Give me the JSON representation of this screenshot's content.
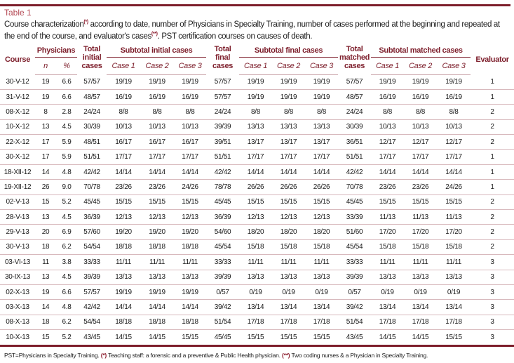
{
  "title": "Table 1",
  "caption": {
    "p1": "Course characterization",
    "s1": "(*)",
    "p2": " according to date, number of Physicians in Specialty Training, number of cases performed at the beginning and repeated at the end of the course, and evaluator's cases",
    "s2": "(**)",
    "p3": ". PST certification courses on causes of death."
  },
  "accent_color": "#7d1e2b",
  "headers": {
    "course": "Course",
    "physicians": "Physicians",
    "n": "n",
    "pct": "%",
    "total_initial": "Total initial cases",
    "subtotal_initial": "Subtotal initial cases",
    "total_final": "Total final cases",
    "subtotal_final": "Subtotal final cases",
    "total_matched": "Total matched cases",
    "subtotal_matched": "Subtotal matched cases",
    "evaluator": "Evaluator",
    "case1": "Case 1",
    "case2": "Case 2",
    "case3": "Case 3"
  },
  "rows": [
    [
      "30-V-12",
      "19",
      "6.6",
      "57/57",
      "19/19",
      "19/19",
      "19/19",
      "57/57",
      "19/19",
      "19/19",
      "19/19",
      "57/57",
      "19/19",
      "19/19",
      "19/19",
      "1"
    ],
    [
      "31-V-12",
      "19",
      "6.6",
      "48/57",
      "16/19",
      "16/19",
      "16/19",
      "57/57",
      "19/19",
      "19/19",
      "19/19",
      "48/57",
      "16/19",
      "16/19",
      "16/19",
      "1"
    ],
    [
      "08-X-12",
      "8",
      "2.8",
      "24/24",
      "8/8",
      "8/8",
      "8/8",
      "24/24",
      "8/8",
      "8/8",
      "8/8",
      "24/24",
      "8/8",
      "8/8",
      "8/8",
      "2"
    ],
    [
      "10-X-12",
      "13",
      "4.5",
      "30/39",
      "10/13",
      "10/13",
      "10/13",
      "39/39",
      "13/13",
      "13/13",
      "13/13",
      "30/39",
      "10/13",
      "10/13",
      "10/13",
      "2"
    ],
    [
      "22-X-12",
      "17",
      "5.9",
      "48/51",
      "16/17",
      "16/17",
      "16/17",
      "39/51",
      "13/17",
      "13/17",
      "13/17",
      "36/51",
      "12/17",
      "12/17",
      "12/17",
      "2"
    ],
    [
      "30-X-12",
      "17",
      "5.9",
      "51/51",
      "17/17",
      "17/17",
      "17/17",
      "51/51",
      "17/17",
      "17/17",
      "17/17",
      "51/51",
      "17/17",
      "17/17",
      "17/17",
      "1"
    ],
    [
      "18-XII-12",
      "14",
      "4.8",
      "42/42",
      "14/14",
      "14/14",
      "14/14",
      "42/42",
      "14/14",
      "14/14",
      "14/14",
      "42/42",
      "14/14",
      "14/14",
      "14/14",
      "1"
    ],
    [
      "19-XII-12",
      "26",
      "9.0",
      "70/78",
      "23/26",
      "23/26",
      "24/26",
      "78/78",
      "26/26",
      "26/26",
      "26/26",
      "70/78",
      "23/26",
      "23/26",
      "24/26",
      "1"
    ],
    [
      "02-V-13",
      "15",
      "5.2",
      "45/45",
      "15/15",
      "15/15",
      "15/15",
      "45/45",
      "15/15",
      "15/15",
      "15/15",
      "45/45",
      "15/15",
      "15/15",
      "15/15",
      "2"
    ],
    [
      "28-V-13",
      "13",
      "4.5",
      "36/39",
      "12/13",
      "12/13",
      "12/13",
      "36/39",
      "12/13",
      "12/13",
      "12/13",
      "33/39",
      "11/13",
      "11/13",
      "11/13",
      "2"
    ],
    [
      "29-V-13",
      "20",
      "6.9",
      "57/60",
      "19/20",
      "19/20",
      "19/20",
      "54/60",
      "18/20",
      "18/20",
      "18/20",
      "51/60",
      "17/20",
      "17/20",
      "17/20",
      "2"
    ],
    [
      "30-V-13",
      "18",
      "6.2",
      "54/54",
      "18/18",
      "18/18",
      "18/18",
      "45/54",
      "15/18",
      "15/18",
      "15/18",
      "45/54",
      "15/18",
      "15/18",
      "15/18",
      "2"
    ],
    [
      "03-VI-13",
      "11",
      "3.8",
      "33/33",
      "11/11",
      "11/11",
      "11/11",
      "33/33",
      "11/11",
      "11/11",
      "11/11",
      "33/33",
      "11/11",
      "11/11",
      "11/11",
      "3"
    ],
    [
      "30-IX-13",
      "13",
      "4.5",
      "39/39",
      "13/13",
      "13/13",
      "13/13",
      "39/39",
      "13/13",
      "13/13",
      "13/13",
      "39/39",
      "13/13",
      "13/13",
      "13/13",
      "3"
    ],
    [
      "02-X-13",
      "19",
      "6.6",
      "57/57",
      "19/19",
      "19/19",
      "19/19",
      "0/57",
      "0/19",
      "0/19",
      "0/19",
      "0/57",
      "0/19",
      "0/19",
      "0/19",
      "3"
    ],
    [
      "03-X-13",
      "14",
      "4.8",
      "42/42",
      "14/14",
      "14/14",
      "14/14",
      "39/42",
      "13/14",
      "13/14",
      "13/14",
      "39/42",
      "13/14",
      "13/14",
      "13/14",
      "3"
    ],
    [
      "08-X-13",
      "18",
      "6.2",
      "54/54",
      "18/18",
      "18/18",
      "18/18",
      "51/54",
      "17/18",
      "17/18",
      "17/18",
      "51/54",
      "17/18",
      "17/18",
      "17/18",
      "3"
    ],
    [
      "10-X-13",
      "15",
      "5.2",
      "43/45",
      "14/15",
      "14/15",
      "15/15",
      "45/45",
      "15/15",
      "15/15",
      "15/15",
      "43/45",
      "14/15",
      "14/15",
      "15/15",
      "3"
    ]
  ],
  "footer": {
    "f1": "PST=Physicians in Specialty Training. ",
    "m1": "(*)",
    "f2": " Teaching staff: a forensic and a preventive & Public Health physician. ",
    "m2": "(**)",
    "f3": " Two coding nurses & a Physician in Specialty Training."
  }
}
